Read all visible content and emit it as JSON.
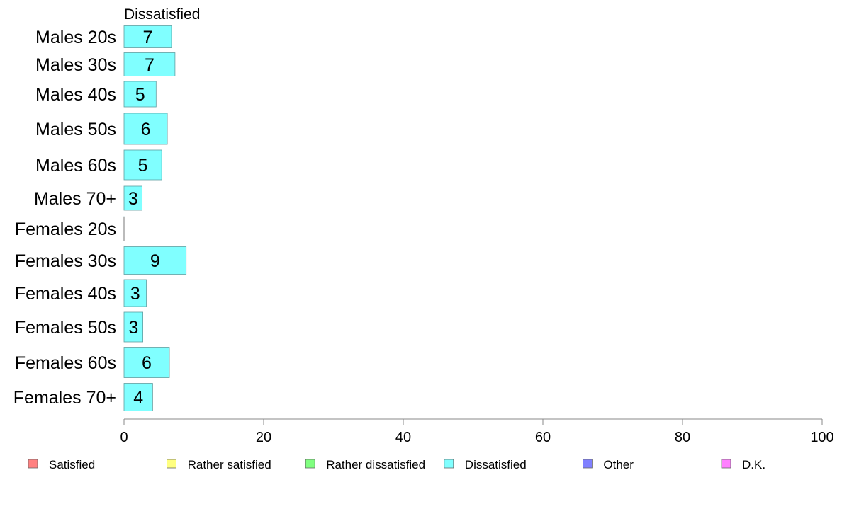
{
  "chart_data": {
    "type": "bar",
    "orientation": "horizontal",
    "stacked": true,
    "series_title": "Dissatisfied",
    "categories": [
      "Males 20s",
      "Males 30s",
      "Males 40s",
      "Males 50s",
      "Males 60s",
      "Males 70+",
      "Females 20s",
      "Females 30s",
      "Females 40s",
      "Females 50s",
      "Females 60s",
      "Females 70+"
    ],
    "series": [
      {
        "name": "Satisfied",
        "color": "#ff8080",
        "values": [
          null,
          null,
          null,
          null,
          null,
          null,
          null,
          null,
          null,
          null,
          null,
          null
        ]
      },
      {
        "name": "Rather satisfied",
        "color": "#ffff80",
        "values": [
          null,
          null,
          null,
          null,
          null,
          null,
          null,
          null,
          null,
          null,
          null,
          null
        ]
      },
      {
        "name": "Rather dissatisfied",
        "color": "#80ff80",
        "values": [
          null,
          null,
          null,
          null,
          null,
          null,
          null,
          null,
          null,
          null,
          null,
          null
        ]
      },
      {
        "name": "Dissatisfied",
        "color": "#80ffff",
        "values": [
          6.8,
          7.3,
          4.6,
          6.2,
          5.4,
          2.6,
          0,
          8.9,
          3.2,
          2.7,
          6.5,
          4.1
        ],
        "labels": [
          "7",
          "7",
          "5",
          "6",
          "5",
          "3",
          "",
          "9",
          "3",
          "3",
          "6",
          "4"
        ]
      },
      {
        "name": "Other",
        "color": "#8080ff",
        "values": [
          null,
          null,
          null,
          null,
          null,
          null,
          null,
          null,
          null,
          null,
          null,
          null
        ]
      },
      {
        "name": "D.K.",
        "color": "#ff80ff",
        "values": [
          null,
          null,
          null,
          null,
          null,
          null,
          null,
          null,
          null,
          null,
          null,
          null
        ]
      }
    ],
    "xlim": [
      0,
      100
    ],
    "xticks": [
      0,
      20,
      40,
      60,
      80,
      100
    ],
    "grid": false,
    "legend_position": "bottom"
  }
}
